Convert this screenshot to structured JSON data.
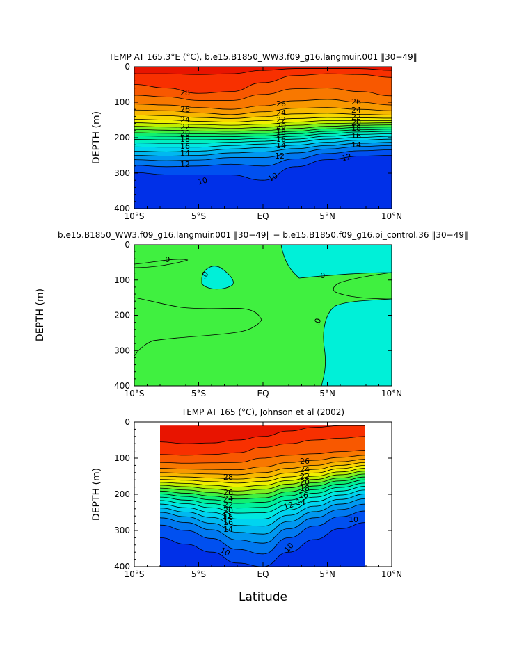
{
  "chart_data": [
    {
      "type": "heatmap",
      "title": "TEMP AT 165.3°E (°C), b.e15.B1850_WW3.f09_g16.langmuir.001 ‖30−49‖",
      "xlabel": "",
      "ylabel": "DEPTH (m)",
      "x_ticks": [
        "10°S",
        "5°S",
        "EQ",
        "5°N",
        "10°N"
      ],
      "y_ticks": [
        "0",
        "100",
        "200",
        "300",
        "400"
      ],
      "xlim": [
        -10,
        10
      ],
      "ylim": [
        400,
        0
      ],
      "contour_levels": [
        10,
        11,
        12,
        13,
        14,
        15,
        16,
        17,
        18,
        19,
        20,
        21,
        22,
        23,
        24,
        25,
        26,
        27,
        28,
        29
      ],
      "contour_labels": [
        "28",
        "26",
        "24",
        "22",
        "20",
        "18",
        "16",
        "14",
        "12",
        "10",
        "26",
        "24",
        "22",
        "20",
        "18",
        "16",
        "14",
        "12",
        "10",
        "26",
        "24",
        "22",
        "20",
        "18",
        "16",
        "14",
        "12",
        "10"
      ],
      "x": [
        -10,
        -7.5,
        -5,
        -2.5,
        0,
        2.5,
        5,
        7.5,
        10
      ],
      "series": [
        {
          "name": "29",
          "values": [
            20,
            20,
            22,
            20,
            10,
            5,
            5,
            5,
            10
          ]
        },
        {
          "name": "28",
          "values": [
            50,
            60,
            75,
            70,
            45,
            25,
            20,
            22,
            30
          ]
        },
        {
          "name": "27",
          "values": [
            80,
            85,
            95,
            95,
            78,
            62,
            60,
            70,
            82
          ]
        },
        {
          "name": "26",
          "values": [
            105,
            108,
            115,
            120,
            110,
            96,
            92,
            100,
            108
          ]
        },
        {
          "name": "25",
          "values": [
            122,
            124,
            130,
            135,
            127,
            117,
            115,
            120,
            124
          ]
        },
        {
          "name": "24",
          "values": [
            136,
            138,
            143,
            146,
            141,
            133,
            131,
            134,
            136
          ]
        },
        {
          "name": "23",
          "values": [
            148,
            150,
            154,
            156,
            152,
            146,
            143,
            144,
            145
          ]
        },
        {
          "name": "22",
          "values": [
            158,
            160,
            163,
            165,
            162,
            156,
            152,
            152,
            152
          ]
        },
        {
          "name": "21",
          "values": [
            168,
            170,
            172,
            174,
            171,
            165,
            160,
            159,
            158
          ]
        },
        {
          "name": "20",
          "values": [
            177,
            179,
            181,
            182,
            180,
            174,
            168,
            165,
            164
          ]
        },
        {
          "name": "19",
          "values": [
            186,
            188,
            189,
            190,
            188,
            182,
            175,
            171,
            170
          ]
        },
        {
          "name": "18",
          "values": [
            195,
            196,
            197,
            197,
            195,
            189,
            182,
            178,
            176
          ]
        },
        {
          "name": "17",
          "values": [
            205,
            206,
            206,
            205,
            202,
            196,
            189,
            184,
            182
          ]
        },
        {
          "name": "16",
          "values": [
            215,
            216,
            216,
            213,
            210,
            204,
            196,
            191,
            189
          ]
        },
        {
          "name": "15",
          "values": [
            226,
            227,
            227,
            222,
            218,
            212,
            204,
            199,
            196
          ]
        },
        {
          "name": "14",
          "values": [
            238,
            240,
            238,
            232,
            228,
            221,
            213,
            207,
            204
          ]
        },
        {
          "name": "13",
          "values": [
            250,
            252,
            250,
            243,
            240,
            231,
            222,
            216,
            213
          ]
        },
        {
          "name": "12",
          "values": [
            262,
            265,
            263,
            256,
            256,
            243,
            232,
            225,
            222
          ]
        },
        {
          "name": "11",
          "values": [
            278,
            282,
            280,
            275,
            280,
            260,
            245,
            237,
            234
          ]
        },
        {
          "name": "10",
          "values": [
            298,
            305,
            305,
            305,
            320,
            282,
            262,
            252,
            250
          ]
        }
      ]
    },
    {
      "type": "heatmap",
      "title": "b.e15.B1850_WW3.f09_g16.langmuir.001 ‖30−49‖ − b.e15.B1850.f09_g16.pi_control.36 ‖30−49‖",
      "xlabel": "",
      "ylabel": "DEPTH (m)",
      "x_ticks": [
        "10°S",
        "5°S",
        "EQ",
        "5°N",
        "10°N"
      ],
      "y_ticks": [
        "0",
        "100",
        "200",
        "300",
        "400"
      ],
      "xlim": [
        -10,
        10
      ],
      "ylim": [
        400,
        0
      ],
      "contour_labels": [
        ".0",
        ".0",
        ".0",
        ".0"
      ],
      "regions": [
        {
          "sign": "positive",
          "description_values": "cyan region north of equator 0–90 m, 2°N–10°N; cyan patch near 6°S 60–130 m; cyan region south-east 5°N–10°N 180–400 m"
        },
        {
          "sign": "slightly positive",
          "description_values": "lime band 10°S–1°S 150–290 m; lime tongue 6°N–10°N 80–210 m"
        }
      ]
    },
    {
      "type": "heatmap",
      "title": "TEMP AT 165 (°C), Johnson et al (2002)",
      "xlabel": "Latitude",
      "ylabel": "DEPTH (m)",
      "x_ticks": [
        "10°S",
        "5°S",
        "EQ",
        "5°N",
        "10°N"
      ],
      "y_ticks": [
        "0",
        "100",
        "200",
        "300",
        "400"
      ],
      "xlim": [
        -10,
        10
      ],
      "ylim": [
        400,
        0
      ],
      "data_xrange": [
        -8,
        8
      ],
      "data_yrange": [
        10,
        400
      ],
      "contour_labels": [
        "28",
        "26",
        "24",
        "22",
        "20",
        "18",
        "16",
        "14",
        "12",
        "10",
        "26",
        "24",
        "22",
        "20",
        "18",
        "16",
        "14",
        "12",
        "10",
        "10"
      ],
      "x": [
        -8,
        -6,
        -4,
        -2,
        0,
        2,
        4,
        6,
        8
      ],
      "series": [
        {
          "name": "29",
          "values": [
            55,
            60,
            58,
            50,
            40,
            25,
            15,
            10,
            10
          ]
        },
        {
          "name": "28",
          "values": [
            90,
            92,
            90,
            85,
            70,
            60,
            50,
            45,
            40
          ]
        },
        {
          "name": "27",
          "values": [
            112,
            114,
            113,
            112,
            100,
            92,
            88,
            82,
            78
          ]
        },
        {
          "name": "26",
          "values": [
            128,
            130,
            131,
            132,
            124,
            112,
            106,
            98,
            92
          ]
        },
        {
          "name": "25",
          "values": [
            140,
            142,
            144,
            146,
            140,
            128,
            120,
            110,
            103
          ]
        },
        {
          "name": "24",
          "values": [
            150,
            152,
            155,
            158,
            153,
            141,
            131,
            120,
            112
          ]
        },
        {
          "name": "23",
          "values": [
            159,
            161,
            165,
            169,
            164,
            152,
            141,
            129,
            120
          ]
        },
        {
          "name": "22",
          "values": [
            167,
            170,
            175,
            180,
            175,
            162,
            150,
            138,
            128
          ]
        },
        {
          "name": "21",
          "values": [
            175,
            179,
            185,
            191,
            186,
            172,
            159,
            146,
            136
          ]
        },
        {
          "name": "20",
          "values": [
            183,
            188,
            195,
            202,
            198,
            182,
            168,
            155,
            144
          ]
        },
        {
          "name": "19",
          "values": [
            191,
            197,
            205,
            213,
            210,
            193,
            177,
            163,
            152
          ]
        },
        {
          "name": "18",
          "values": [
            199,
            206,
            215,
            225,
            222,
            204,
            187,
            172,
            160
          ]
        },
        {
          "name": "17",
          "values": [
            208,
            216,
            226,
            238,
            236,
            216,
            197,
            181,
            169
          ]
        },
        {
          "name": "16",
          "values": [
            217,
            226,
            237,
            252,
            251,
            229,
            208,
            191,
            178
          ]
        },
        {
          "name": "15",
          "values": [
            227,
            237,
            250,
            268,
            268,
            243,
            220,
            202,
            188
          ]
        },
        {
          "name": "14",
          "values": [
            238,
            249,
            264,
            286,
            288,
            258,
            233,
            214,
            199
          ]
        },
        {
          "name": "13",
          "values": [
            250,
            262,
            280,
            305,
            310,
            275,
            248,
            227,
            212
          ]
        },
        {
          "name": "12",
          "values": [
            265,
            278,
            298,
            326,
            335,
            295,
            265,
            242,
            227
          ]
        },
        {
          "name": "11",
          "values": [
            285,
            300,
            322,
            352,
            365,
            320,
            288,
            262,
            246
          ]
        },
        {
          "name": "10",
          "values": [
            320,
            338,
            360,
            390,
            400,
            360,
            325,
            295,
            278
          ]
        }
      ]
    }
  ],
  "colors": {
    "palette": [
      "#2000c8",
      "#0030e8",
      "#0050f0",
      "#0078f0",
      "#0098f0",
      "#00b8f0",
      "#00d4f0",
      "#00e8e0",
      "#00f0c0",
      "#00f09a",
      "#10f070",
      "#40f040",
      "#80f020",
      "#c0f000",
      "#f0f000",
      "#f8d800",
      "#f8b800",
      "#f89800",
      "#f87800",
      "#f85800",
      "#f83000",
      "#e81400"
    ],
    "diff_cyan": "#00f0d8",
    "diff_lime": "#40f040"
  }
}
